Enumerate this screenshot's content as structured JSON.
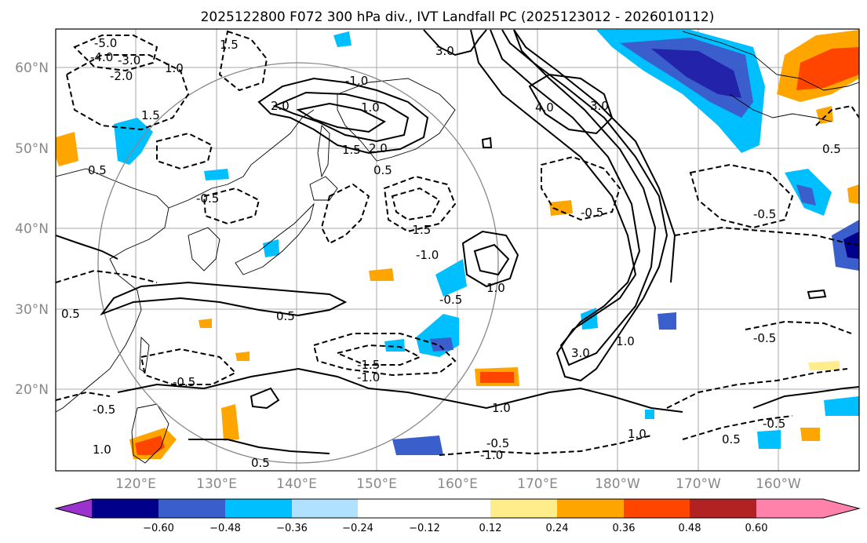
{
  "title": "2025122800 F072 300 hPa div., IVT Landfall PC (2025123012 - 2026010112)",
  "lat_labels": [
    "60°N",
    "50°N",
    "40°N",
    "30°N",
    "20°N"
  ],
  "lon_labels": [
    "120°E",
    "130°E",
    "140°E",
    "150°E",
    "160°E",
    "170°E",
    "180°W",
    "170°W",
    "160°W"
  ],
  "colorbar": {
    "ticks": [
      "−0.60",
      "−0.48",
      "−0.36",
      "−0.24",
      "−0.12",
      "0.12",
      "0.24",
      "0.36",
      "0.48",
      "0.60"
    ],
    "colors": [
      "#9a32cd",
      "#00008b",
      "#3a5fcd",
      "#00bfff",
      "#b0e2ff",
      "#ffffff",
      "#ffec8b",
      "#ffa500",
      "#ff4500",
      "#b22222",
      "#ff82ab"
    ]
  },
  "contour_labels": [
    "-5.0",
    "-4.0",
    "-3.0",
    "-2.0",
    "1.5",
    "1.0",
    "-1.0",
    "1.5",
    "0.5",
    "-0.5",
    "1.0",
    "3.0",
    "2.0",
    "4.0",
    "3.0",
    "1.5",
    "2.0",
    "0.5",
    "-0.5",
    "-1.5",
    "-1.0",
    "-0.5",
    "0.5",
    "1.0",
    "-0.5",
    "0.5",
    "-0.5",
    "-1.5",
    "-1.0",
    "3.0",
    "1.0",
    "1.0",
    "-0.5",
    "-1.0",
    "-0.5",
    "0.5",
    "-0.5",
    "1.0",
    "0.5",
    "1.0",
    "-0.5",
    "0.5"
  ]
}
